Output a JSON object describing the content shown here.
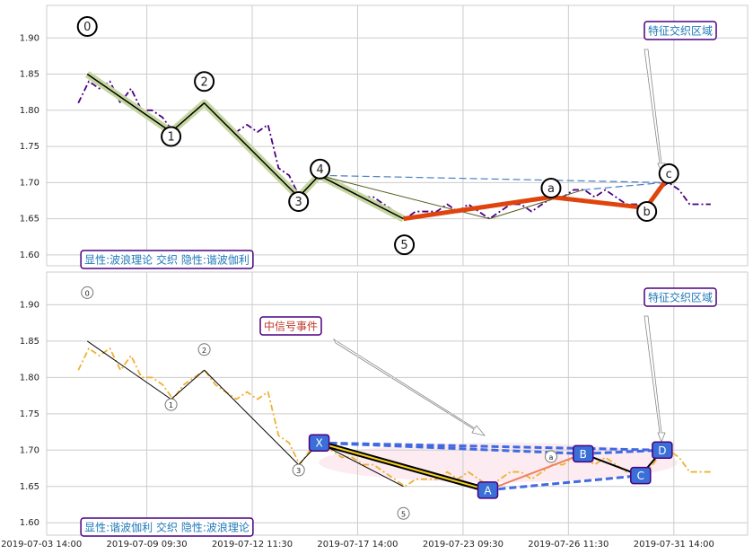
{
  "chart_data": [
    {
      "type": "line",
      "xlim": [
        1,
        134
      ],
      "ylim": [
        1.585,
        1.945
      ],
      "yticks": [
        {
          "value": 1.6,
          "label": "1.60"
        },
        {
          "value": 1.65,
          "label": "1.65"
        },
        {
          "value": 1.7,
          "label": "1.70"
        },
        {
          "value": 1.75,
          "label": "1.75"
        },
        {
          "value": 1.8,
          "label": "1.80"
        },
        {
          "value": 1.85,
          "label": "1.85"
        },
        {
          "value": 1.9,
          "label": "1.90"
        }
      ],
      "grid": true,
      "series": [
        {
          "color": "#4b0082",
          "style": "dashdot",
          "x": [
            7,
            9,
            11,
            13,
            15,
            17,
            19,
            21,
            23,
            25,
            27,
            29,
            31,
            33,
            35,
            37,
            39,
            41,
            43,
            45,
            47,
            49,
            51,
            53,
            55,
            57,
            59,
            61,
            63,
            65,
            67,
            69,
            71,
            73,
            75,
            77,
            79,
            81,
            83,
            85,
            87,
            89,
            91,
            93,
            95,
            97,
            99,
            101,
            103,
            105,
            107,
            109,
            111,
            113,
            115,
            117,
            119,
            121,
            123,
            125,
            127
          ],
          "values": [
            1.81,
            1.84,
            1.83,
            1.84,
            1.81,
            1.83,
            1.8,
            1.8,
            1.79,
            1.77,
            1.79,
            1.8,
            1.81,
            1.79,
            1.78,
            1.77,
            1.78,
            1.77,
            1.78,
            1.72,
            1.71,
            1.68,
            1.7,
            1.71,
            1.7,
            1.69,
            1.69,
            1.68,
            1.68,
            1.67,
            1.66,
            1.65,
            1.66,
            1.66,
            1.66,
            1.67,
            1.66,
            1.67,
            1.66,
            1.65,
            1.66,
            1.67,
            1.67,
            1.66,
            1.67,
            1.68,
            1.68,
            1.69,
            1.69,
            1.68,
            1.69,
            1.68,
            1.67,
            1.67,
            1.67,
            1.69,
            1.7,
            1.69,
            1.67,
            1.67,
            1.67
          ]
        }
      ],
      "lines": [
        {
          "color": "#000000",
          "width": 1.5,
          "halo": "#c5d6a0",
          "style": "solid",
          "x": [
            8.7,
            24.6,
            30.9,
            48.8,
            52.7,
            68.7
          ],
          "values": [
            1.85,
            1.77,
            1.81,
            1.68,
            1.71,
            1.65
          ]
        },
        {
          "color": "#555b20",
          "width": 1,
          "style": "solid",
          "x": [
            52.7,
            85,
            102.8
          ],
          "values": [
            1.71,
            1.65,
            1.69
          ]
        },
        {
          "color": "#4a7fc0",
          "width": 1.2,
          "style": "dashed",
          "x": [
            52.7,
            118.2
          ],
          "values": [
            1.71,
            1.7
          ]
        },
        {
          "color": "#4a7fc0",
          "width": 1.2,
          "style": "dashed",
          "x": [
            102.8,
            118.2
          ],
          "values": [
            1.69,
            1.7
          ]
        },
        {
          "color": "#e0440e",
          "width": 5,
          "style": "solid",
          "x": [
            68.7,
            96.7,
            114.7,
            118.2
          ],
          "values": [
            1.65,
            1.68,
            1.665,
            1.7
          ]
        }
      ],
      "points": {
        "labels": [
          "0",
          "1",
          "2",
          "3",
          "4",
          "5",
          "a",
          "b",
          "c"
        ],
        "x": [
          8.7,
          24.6,
          30.9,
          48.8,
          52.7,
          68.7,
          96.7,
          114.7,
          118.2
        ],
        "values": [
          1.85,
          1.77,
          1.81,
          1.68,
          1.71,
          1.65,
          1.68,
          1.665,
          1.7
        ]
      },
      "annotations": [
        {
          "text": "特征交织区域",
          "color": "#1f7ab8"
        },
        {
          "text": "显性:波浪理论 交织 隐性:谐波伽利",
          "color": "#1f7ab8"
        }
      ]
    },
    {
      "type": "line",
      "xlim": [
        1,
        134
      ],
      "ylim": [
        1.583,
        1.945
      ],
      "xticks": [
        {
          "value": 0,
          "label": "2019-07-03 14:00"
        },
        {
          "value": 20,
          "label": "2019-07-09 09:30"
        },
        {
          "value": 40,
          "label": "2019-07-12 11:30"
        },
        {
          "value": 60,
          "label": "2019-07-17 14:00"
        },
        {
          "value": 80,
          "label": "2019-07-23 09:30"
        },
        {
          "value": 100,
          "label": "2019-07-26 11:30"
        },
        {
          "value": 120,
          "label": "2019-07-31 14:00"
        }
      ],
      "yticks": [
        {
          "value": 1.6,
          "label": "1.60"
        },
        {
          "value": 1.65,
          "label": "1.65"
        },
        {
          "value": 1.7,
          "label": "1.70"
        },
        {
          "value": 1.75,
          "label": "1.75"
        },
        {
          "value": 1.8,
          "label": "1.80"
        },
        {
          "value": 1.85,
          "label": "1.85"
        },
        {
          "value": 1.9,
          "label": "1.90"
        }
      ],
      "grid": true,
      "series": [
        {
          "color": "#f0b030",
          "style": "dashdot",
          "x": [
            7,
            9,
            11,
            13,
            15,
            17,
            19,
            21,
            23,
            25,
            27,
            29,
            31,
            33,
            35,
            37,
            39,
            41,
            43,
            45,
            47,
            49,
            51,
            53,
            55,
            57,
            59,
            61,
            63,
            65,
            67,
            69,
            71,
            73,
            75,
            77,
            79,
            81,
            83,
            85,
            87,
            89,
            91,
            93,
            95,
            97,
            99,
            101,
            103,
            105,
            107,
            109,
            111,
            113,
            115,
            117,
            119,
            121,
            123,
            125,
            127
          ],
          "values": [
            1.81,
            1.84,
            1.83,
            1.84,
            1.81,
            1.83,
            1.8,
            1.8,
            1.79,
            1.77,
            1.79,
            1.8,
            1.81,
            1.79,
            1.78,
            1.77,
            1.78,
            1.77,
            1.78,
            1.72,
            1.71,
            1.68,
            1.7,
            1.71,
            1.7,
            1.69,
            1.69,
            1.68,
            1.68,
            1.67,
            1.66,
            1.65,
            1.66,
            1.66,
            1.66,
            1.67,
            1.66,
            1.67,
            1.66,
            1.65,
            1.66,
            1.67,
            1.67,
            1.66,
            1.67,
            1.68,
            1.68,
            1.69,
            1.69,
            1.68,
            1.69,
            1.68,
            1.67,
            1.67,
            1.67,
            1.69,
            1.7,
            1.69,
            1.67,
            1.67,
            1.67
          ]
        }
      ],
      "lines": [
        {
          "color": "#000000",
          "width": 1,
          "style": "solid",
          "x": [
            8.7,
            24.6,
            30.9,
            48.8,
            52.7,
            68.7
          ],
          "values": [
            1.85,
            1.77,
            1.81,
            1.68,
            1.71,
            1.65
          ]
        },
        {
          "color": "#4169e1",
          "width": 3,
          "style": "dashed",
          "x": [
            52.7,
            102.8
          ],
          "values": [
            1.71,
            1.695
          ]
        },
        {
          "color": "#4169e1",
          "width": 3,
          "style": "dashed",
          "x": [
            52.7,
            117.8
          ],
          "values": [
            1.71,
            1.7
          ]
        },
        {
          "color": "#4169e1",
          "width": 3,
          "style": "dashed",
          "x": [
            84.7,
            113.7
          ],
          "values": [
            1.645,
            1.665
          ]
        },
        {
          "color": "#4169e1",
          "width": 3,
          "style": "dashed",
          "x": [
            102.8,
            117.8
          ],
          "values": [
            1.695,
            1.7
          ]
        },
        {
          "color": "#000000",
          "width": 6,
          "inner": "#f5d020",
          "style": "solid",
          "x": [
            52.7,
            84.7
          ],
          "values": [
            1.71,
            1.645
          ]
        },
        {
          "color": "#f08060",
          "width": 2,
          "style": "solid",
          "x": [
            84.7,
            102.8
          ],
          "values": [
            1.645,
            1.695
          ]
        },
        {
          "color": "#000000",
          "width": 2,
          "style": "solid",
          "x": [
            102.8,
            113.7,
            117.8
          ],
          "values": [
            1.695,
            1.665,
            1.7
          ]
        }
      ],
      "points": {
        "labels": [
          "0",
          "1",
          "2",
          "3",
          "5",
          "a"
        ],
        "x": [
          8.7,
          24.6,
          30.9,
          48.8,
          68.7,
          96.7
        ],
        "values": [
          1.85,
          1.77,
          1.81,
          1.68,
          1.65,
          1.68
        ]
      },
      "pattern": {
        "labels": [
          "X",
          "A",
          "B",
          "C",
          "D"
        ],
        "x": [
          52.7,
          84.7,
          102.8,
          113.7,
          117.8
        ],
        "values": [
          1.71,
          1.645,
          1.695,
          1.665,
          1.7
        ]
      },
      "annotations": [
        {
          "text": "中信号事件",
          "color": "#c0392b"
        },
        {
          "text": "特征交织区域",
          "color": "#1f7ab8"
        },
        {
          "text": "显性:谐波伽利 交织 隐性:波浪理论",
          "color": "#1f7ab8"
        }
      ]
    }
  ]
}
